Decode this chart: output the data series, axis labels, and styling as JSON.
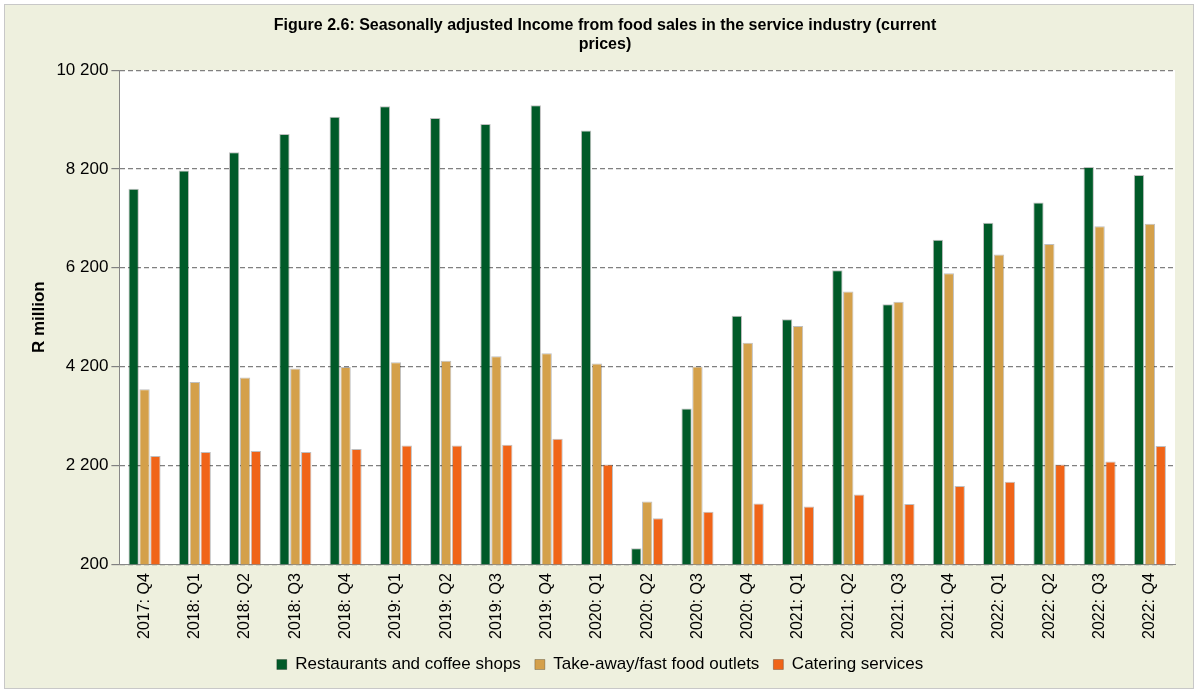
{
  "chart_data": {
    "type": "bar",
    "title": "Figure 2.6: Seasonally adjusted Income from food sales in the service industry (current prices)",
    "ylabel": "R million",
    "categories": [
      "2017: Q4",
      "2018: Q1",
      "2018: Q2",
      "2018: Q3",
      "2018: Q4",
      "2019: Q1",
      "2019: Q2",
      "2019: Q3",
      "2019: Q4",
      "2020: Q1",
      "2020: Q2",
      "2020: Q3",
      "2020: Q4",
      "2021: Q1",
      "2021: Q2",
      "2021: Q3",
      "2021: Q4",
      "2022: Q1",
      "2022: Q2",
      "2022: Q3",
      "2022: Q4"
    ],
    "series": [
      {
        "name": "Restaurants and coffee shops",
        "color": "#005a28",
        "values": [
          7800,
          8170,
          8540,
          8910,
          9260,
          9470,
          9230,
          9110,
          9490,
          8980,
          520,
          3350,
          5230,
          5160,
          6150,
          5460,
          6770,
          7110,
          7520,
          8240,
          8080
        ]
      },
      {
        "name": "Take-away/fast food outlets",
        "color": "#d4a04a",
        "values": [
          3740,
          3890,
          3980,
          4160,
          4190,
          4290,
          4320,
          4410,
          4470,
          4260,
          1470,
          4200,
          4680,
          5020,
          5720,
          5510,
          6090,
          6470,
          6680,
          7040,
          7090
        ]
      },
      {
        "name": "Catering services",
        "color": "#f06418",
        "values": [
          2390,
          2470,
          2490,
          2470,
          2530,
          2600,
          2600,
          2620,
          2740,
          2220,
          1130,
          1260,
          1430,
          1370,
          1610,
          1420,
          1780,
          1870,
          2220,
          2280,
          2590
        ]
      }
    ],
    "ylim": [
      200,
      10200
    ],
    "yticks": [
      {
        "value": 200,
        "label": "200"
      },
      {
        "value": 2200,
        "label": "2 200"
      },
      {
        "value": 4200,
        "label": "4 200"
      },
      {
        "value": 6200,
        "label": "6 200"
      },
      {
        "value": 8200,
        "label": "8 200"
      },
      {
        "value": 10200,
        "label": "10 200"
      }
    ],
    "grid": "y",
    "legend": "bottom"
  }
}
